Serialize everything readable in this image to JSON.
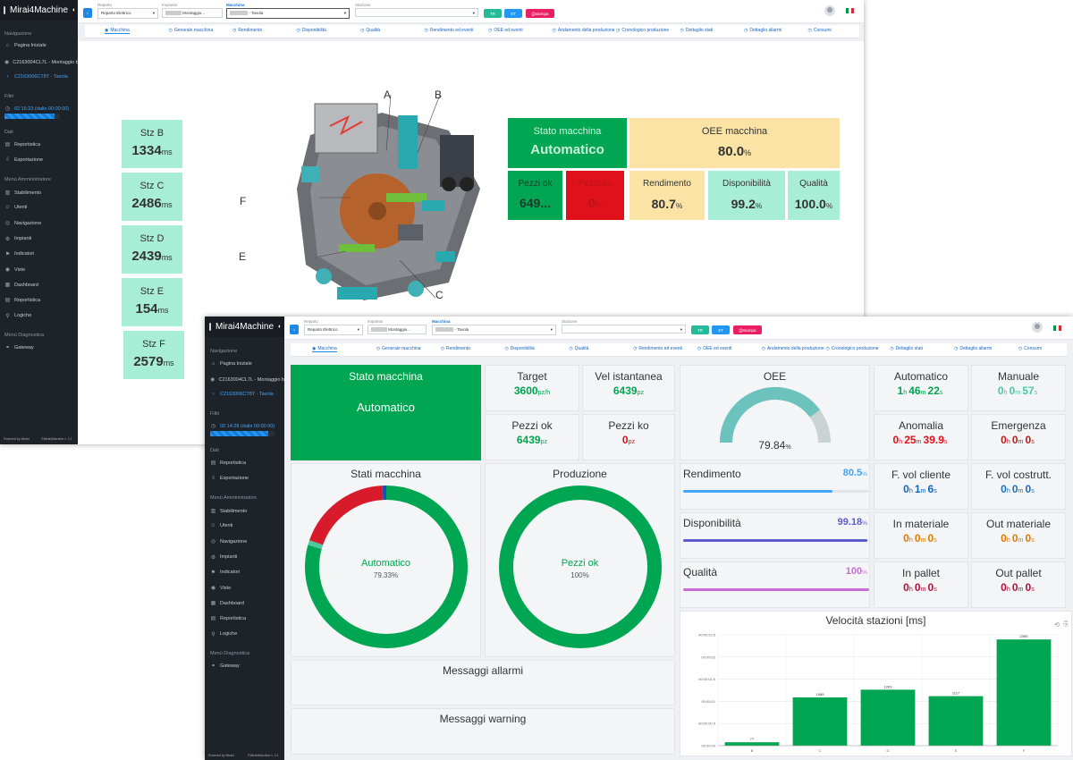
{
  "app_name": "Mirai4Machine",
  "sidebar": {
    "nav_title": "Navigazione",
    "home": "Pagina Iniziale",
    "site": "C2163004CL7L - Montaggio b",
    "machine": "C2163006CT8T - Tavola",
    "filters_title": "Filtri",
    "data_title": "Dati",
    "data_items": [
      "Reportistica",
      "Esportazione"
    ],
    "admin_title": "Menù Amministratore",
    "admin_items": [
      "Stabilimento",
      "Utenti",
      "Navigazione",
      "Impianti",
      "Indicatori",
      "Viste",
      "Dashboard",
      "Reportistica",
      "Logiche"
    ],
    "diag_title": "Menù Diagnostica",
    "diag_items": [
      "Gateway"
    ],
    "footer_left": "Powered by Mirai4",
    "footer_right": "©Mirai4Machine v. 2.1"
  },
  "filters": {
    "reparto_label": "Reparto",
    "reparto_value": "Reparto Elettrico",
    "impianto_label": "Impianto",
    "impianto_value": "Montaggio...",
    "macchina_label": "Macchina",
    "macchina_value": "Tavola",
    "stazione_label": "Stazione",
    "stazione_value": "",
    "btn_tr": "TR",
    "btn_st": "ST",
    "btn_print": "Stampa"
  },
  "tabs": [
    "Macchina",
    "Generale macchina",
    "Rendimento",
    "Disponibilità",
    "Qualità",
    "Rendimento ed eventi",
    "OEE ed eventi",
    "Andamento della produzione",
    "Cronologico produzione",
    "Dettaglio stati",
    "Dettaglio allarmi",
    "Consumi"
  ],
  "back": {
    "time_filter": "02:15:23 (dalle 00:00:00)",
    "time_filter_fraction": 0.9,
    "stations": [
      {
        "label": "Stz B",
        "value": "1334",
        "unit": "ms"
      },
      {
        "label": "Stz C",
        "value": "2486",
        "unit": "ms"
      },
      {
        "label": "Stz D",
        "value": "2439",
        "unit": "ms"
      },
      {
        "label": "Stz E",
        "value": "154",
        "unit": "ms"
      },
      {
        "label": "Stz F",
        "value": "2579",
        "unit": "ms"
      }
    ],
    "diagram_labels": [
      "A",
      "B",
      "C",
      "E",
      "F"
    ],
    "state_title": "Stato macchina",
    "state_value": "Automatico",
    "oee_title": "OEE macchina",
    "oee_value": "80.0",
    "pezzi_ok_title": "Pezzi ok",
    "pezzi_ok_value": "649...",
    "pezzi_ko_title": "Pezzi ko",
    "pezzi_ko_value": "0",
    "rend_title": "Rendimento",
    "rend_value": "80.7",
    "disp_title": "Disponibilità",
    "disp_value": "99.2",
    "qual_title": "Qualità",
    "qual_value": "100.0",
    "pct": "%"
  },
  "front": {
    "time_filter": "02:14:28 (dalle 00:00:00)",
    "time_filter_fraction": 0.9,
    "state_title": "Stato macchina",
    "state_value": "Automatico",
    "target_title": "Target",
    "target_value": "3600",
    "target_unit": "pz/h",
    "vel_title": "Vel istantanea",
    "vel_value": "6439",
    "vel_unit": "pz",
    "pok_title": "Pezzi ok",
    "pok_value": "6439",
    "pok_unit": "pz",
    "pko_title": "Pezzi ko",
    "pko_value": "0",
    "pko_unit": "pz",
    "oee_title": "OEE",
    "oee_value": "79.84",
    "oee_fraction": 0.7984,
    "pct": "%",
    "timers": [
      {
        "title": "Automatico",
        "h": "1",
        "m": "46",
        "s": "22",
        "color": "#00a651"
      },
      {
        "title": "Manuale",
        "h": "0",
        "m": "0",
        "s": "57",
        "color": "#4cc9a0"
      },
      {
        "title": "Anomalia",
        "h": "0",
        "m": "25",
        "s": "39.9",
        "color": "#e0111a"
      },
      {
        "title": "Emergenza",
        "h": "0",
        "m": "0",
        "s": "0",
        "color": "#b71c1c"
      },
      {
        "title": "F. vol cliente",
        "h": "0",
        "m": "1",
        "s": "6",
        "color": "#1565c0"
      },
      {
        "title": "F. vol costrutt.",
        "h": "0",
        "m": "0",
        "s": "0",
        "color": "#1e6fb8"
      },
      {
        "title": "In materiale",
        "h": "0",
        "m": "0",
        "s": "0",
        "color": "#e07b00"
      },
      {
        "title": "Out materiale",
        "h": "0",
        "m": "0",
        "s": "0",
        "color": "#e07b00"
      },
      {
        "title": "In pallet",
        "h": "0",
        "m": "0",
        "s": "0",
        "color": "#b0103a"
      },
      {
        "title": "Out pallet",
        "h": "0",
        "m": "0",
        "s": "0",
        "color": "#b0103a"
      }
    ],
    "stati_title": "Stati macchina",
    "stati_center": "Automatico",
    "stati_center_pct": "79.33%",
    "stati_slices": [
      {
        "value": 79.33,
        "color": "#00a651"
      },
      {
        "value": 1.0,
        "color": "#4cc9a0"
      },
      {
        "value": 18.9,
        "color": "#d81b2a"
      },
      {
        "value": 0.77,
        "color": "#1e4db7"
      }
    ],
    "prod_title": "Produzione",
    "prod_center": "Pezzi ok",
    "prod_center_pct": "100%",
    "prod_slices": [
      {
        "value": 100,
        "color": "#00a651"
      }
    ],
    "rend_title": "Rendimento",
    "rend_value": "80.5",
    "rend_fraction": 0.805,
    "rend_color": "#42a5f5",
    "disp_title": "Disponibilità",
    "disp_value": "99.18",
    "disp_fraction": 0.9918,
    "disp_color": "#5c5ccf",
    "qual_title": "Qualità",
    "qual_value": "100",
    "qual_fraction": 1.0,
    "qual_color": "#c86dd7",
    "alarms_title": "Messaggi allarmi",
    "warnings_title": "Messaggi warning"
  },
  "chart_data": {
    "type": "bar",
    "title": "Velocità stazioni [ms]",
    "categories": [
      "B",
      "C",
      "D",
      "E",
      "F"
    ],
    "values": [
      77,
      1089,
      1263,
      1117,
      2395
    ],
    "data_labels": [
      "77",
      "1089",
      "1263",
      "1117",
      "2395"
    ],
    "ylim": [
      0,
      2500
    ],
    "yticks": [
      0,
      500,
      1000,
      1500,
      2000,
      2500
    ],
    "ytick_labels": [
      "00:00:00",
      "00:00:00.5",
      "00:00:01",
      "00:00:01.5",
      "00:00:02",
      "00:00:02.5"
    ],
    "bar_color": "#00a651",
    "grid": true
  }
}
